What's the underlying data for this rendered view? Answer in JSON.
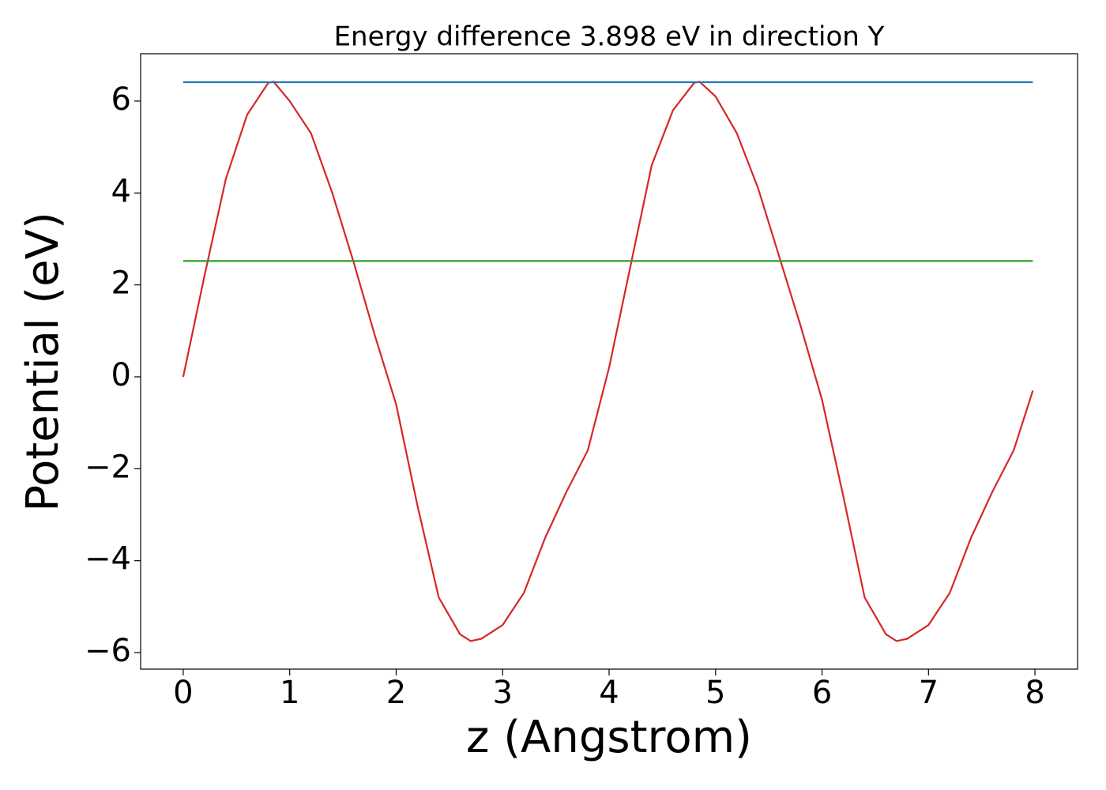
{
  "chart_data": {
    "type": "line",
    "title": "Energy difference 3.898 eV in direction Y",
    "xlabel": "z (Angstrom)",
    "ylabel": "Potential (eV)",
    "xlim": [
      -0.4,
      8.4
    ],
    "ylim": [
      -6.36,
      7.03
    ],
    "xticks": [
      0,
      1,
      2,
      3,
      4,
      5,
      6,
      7,
      8
    ],
    "yticks": [
      {
        "value": -6,
        "label": "−6"
      },
      {
        "value": -4,
        "label": "−4"
      },
      {
        "value": -2,
        "label": "−2"
      },
      0,
      2,
      4,
      6
    ],
    "series": [
      {
        "color": "#d62728",
        "x": [
          0,
          0.2,
          0.4,
          0.6,
          0.8,
          0.85,
          1.0,
          1.2,
          1.4,
          1.6,
          1.8,
          2.0,
          2.2,
          2.4,
          2.6,
          2.7,
          2.8,
          3.0,
          3.2,
          3.4,
          3.6,
          3.8,
          4.0,
          4.2,
          4.4,
          4.6,
          4.8,
          4.85,
          5.0,
          5.2,
          5.4,
          5.6,
          5.8,
          6.0,
          6.2,
          6.4,
          6.6,
          6.7,
          6.8,
          7.0,
          7.2,
          7.4,
          7.6,
          7.8,
          7.98
        ],
        "values": [
          0,
          2.2,
          4.3,
          5.7,
          6.4,
          6.42,
          6.0,
          5.3,
          4.0,
          2.5,
          0.9,
          -0.6,
          -2.8,
          -4.8,
          -5.6,
          -5.75,
          -5.7,
          -5.4,
          -4.7,
          -3.5,
          -2.5,
          -1.6,
          0.2,
          2.4,
          4.6,
          5.8,
          6.4,
          6.42,
          6.1,
          5.3,
          4.1,
          2.6,
          1.1,
          -0.5,
          -2.6,
          -4.8,
          -5.6,
          -5.75,
          -5.7,
          -5.4,
          -4.7,
          -3.5,
          -2.5,
          -1.6,
          -0.3
        ]
      },
      {
        "color": "#1f77b4",
        "x": [
          0,
          7.98
        ],
        "values": [
          6.41,
          6.41
        ]
      },
      {
        "color": "#2ca02c",
        "x": [
          0,
          7.98
        ],
        "values": [
          2.52,
          2.52
        ]
      }
    ]
  }
}
